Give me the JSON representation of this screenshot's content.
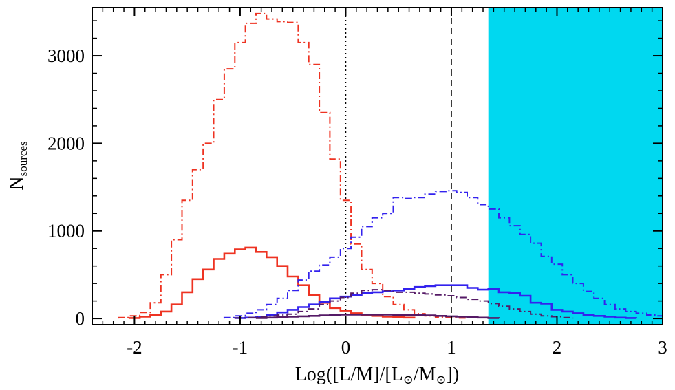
{
  "chart_data": {
    "type": "histogram",
    "xlabel_parts": {
      "prefix": "Log([L/M]/[L",
      "sun_sub_1": "⊙",
      "mid": "/M",
      "sun_sub_2": "⊙",
      "suffix": "])"
    },
    "ylabel_parts": {
      "base": "N",
      "sub": "sources"
    },
    "xlim": [
      -2.4,
      3.0
    ],
    "ylim": [
      -70,
      3550
    ],
    "xticks": [
      -2,
      -1,
      0,
      1,
      2,
      3
    ],
    "xtick_labels": [
      "-2",
      "-1",
      "0",
      "1",
      "2",
      "3"
    ],
    "yticks": [
      0,
      1000,
      2000,
      3000
    ],
    "ytick_labels": [
      "0",
      "1000",
      "2000",
      "3000"
    ],
    "shaded_region": {
      "x_start": 1.35,
      "x_end": 3.0,
      "color": "#00d8f0"
    },
    "reference_lines": [
      {
        "x": 0,
        "style": "dotted",
        "color": "#000000"
      },
      {
        "x": 1,
        "style": "dashed",
        "color": "#000000"
      }
    ],
    "series": [
      {
        "color": "#ee3322",
        "style": "dashdot",
        "bin_start": -2.15,
        "bin_width": 0.1,
        "values": [
          10,
          30,
          70,
          180,
          500,
          900,
          1350,
          1700,
          2000,
          2500,
          2850,
          3150,
          3370,
          3480,
          3420,
          3390,
          3380,
          3150,
          2900,
          2350,
          1820,
          1350,
          850,
          560,
          400,
          250,
          160,
          100,
          55,
          30,
          15,
          10,
          5
        ]
      },
      {
        "color": "#ee3322",
        "style": "solid",
        "bin_start": -2.05,
        "bin_width": 0.1,
        "values": [
          5,
          20,
          40,
          80,
          160,
          300,
          450,
          560,
          680,
          740,
          790,
          810,
          760,
          700,
          600,
          480,
          380,
          270,
          180,
          120,
          90,
          60,
          40,
          30,
          20,
          15,
          10
        ]
      },
      {
        "color": "#3322ee",
        "style": "dashdot",
        "bin_start": -1.15,
        "bin_width": 0.1,
        "values": [
          10,
          30,
          60,
          100,
          160,
          230,
          320,
          440,
          540,
          610,
          700,
          800,
          930,
          1050,
          1150,
          1200,
          1380,
          1370,
          1380,
          1420,
          1450,
          1460,
          1440,
          1380,
          1300,
          1250,
          1150,
          1060,
          960,
          860,
          710,
          620,
          500,
          400,
          310,
          230,
          160,
          110,
          80,
          60,
          40,
          30,
          20
        ]
      },
      {
        "color": "#3322ee",
        "style": "solid",
        "bin_start": -1.05,
        "bin_width": 0.1,
        "values": [
          5,
          10,
          20,
          40,
          70,
          100,
          130,
          160,
          190,
          230,
          250,
          270,
          290,
          300,
          310,
          320,
          340,
          360,
          370,
          380,
          380,
          380,
          350,
          330,
          340,
          300,
          290,
          260,
          180,
          170,
          100,
          80,
          60,
          40,
          30,
          20,
          10,
          5
        ]
      },
      {
        "color": "#551a66",
        "style": "dashdot",
        "bin_start": -1.05,
        "bin_width": 0.1,
        "values": [
          5,
          10,
          20,
          30,
          40,
          50,
          80,
          110,
          160,
          200,
          240,
          290,
          320,
          330,
          320,
          300,
          300,
          290,
          280,
          270,
          260,
          240,
          220,
          200,
          170,
          140,
          110,
          80,
          50,
          30,
          20,
          10
        ]
      },
      {
        "color": "#551a66",
        "style": "solid",
        "bin_start": -0.85,
        "bin_width": 0.1,
        "values": [
          5,
          10,
          15,
          20,
          25,
          30,
          35,
          40,
          45,
          45,
          45,
          45,
          45,
          40,
          40,
          40,
          35,
          30,
          25,
          20,
          15,
          10,
          5
        ]
      }
    ]
  }
}
